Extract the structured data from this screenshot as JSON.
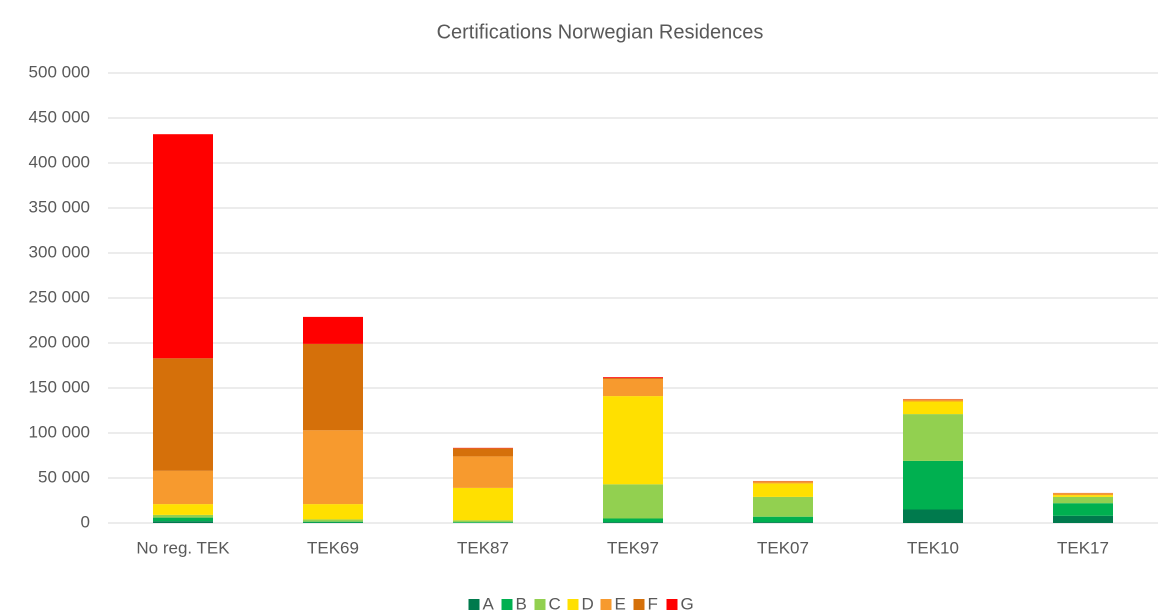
{
  "chart_data": {
    "type": "stacked_bar",
    "title": "Certifications Norwegian Residences",
    "categories": [
      "No reg. TEK",
      "TEK69",
      "TEK87",
      "TEK97",
      "TEK07",
      "TEK10",
      "TEK17"
    ],
    "series": [
      {
        "name": "A",
        "color": "#007a4d",
        "values": [
          2000,
          500,
          200,
          1000,
          1000,
          15000,
          8000
        ]
      },
      {
        "name": "B",
        "color": "#00b050",
        "values": [
          4000,
          1000,
          800,
          4000,
          6000,
          54000,
          14000
        ]
      },
      {
        "name": "C",
        "color": "#92d050",
        "values": [
          3000,
          2500,
          2000,
          38000,
          22000,
          52000,
          7000
        ]
      },
      {
        "name": "D",
        "color": "#ffe000",
        "values": [
          12000,
          17000,
          36000,
          98000,
          15000,
          14000,
          2000
        ]
      },
      {
        "name": "E",
        "color": "#f79a2e",
        "values": [
          37000,
          82000,
          35000,
          19000,
          2000,
          2000,
          2000
        ]
      },
      {
        "name": "F",
        "color": "#d5700a",
        "values": [
          125000,
          96000,
          9000,
          1000,
          500,
          500,
          300
        ]
      },
      {
        "name": "G",
        "color": "#ff0000",
        "values": [
          249000,
          30000,
          500,
          1000,
          200,
          300,
          100
        ]
      }
    ],
    "ylim": [
      0,
      500000
    ],
    "yticks": [
      0,
      {
        "value": 50000,
        "label": "50 000"
      },
      {
        "value": 100000,
        "label": "100 000"
      },
      {
        "value": 150000,
        "label": "150 000"
      },
      {
        "value": 200000,
        "label": "200 000"
      },
      {
        "value": 250000,
        "label": "250 000"
      },
      {
        "value": 300000,
        "label": "300 000"
      },
      {
        "value": 350000,
        "label": "350 000"
      },
      {
        "value": 400000,
        "label": "400 000"
      },
      {
        "value": 450000,
        "label": "450 000"
      },
      {
        "value": 500000,
        "label": "500 000"
      }
    ],
    "grid": true,
    "legend": "bottom"
  }
}
